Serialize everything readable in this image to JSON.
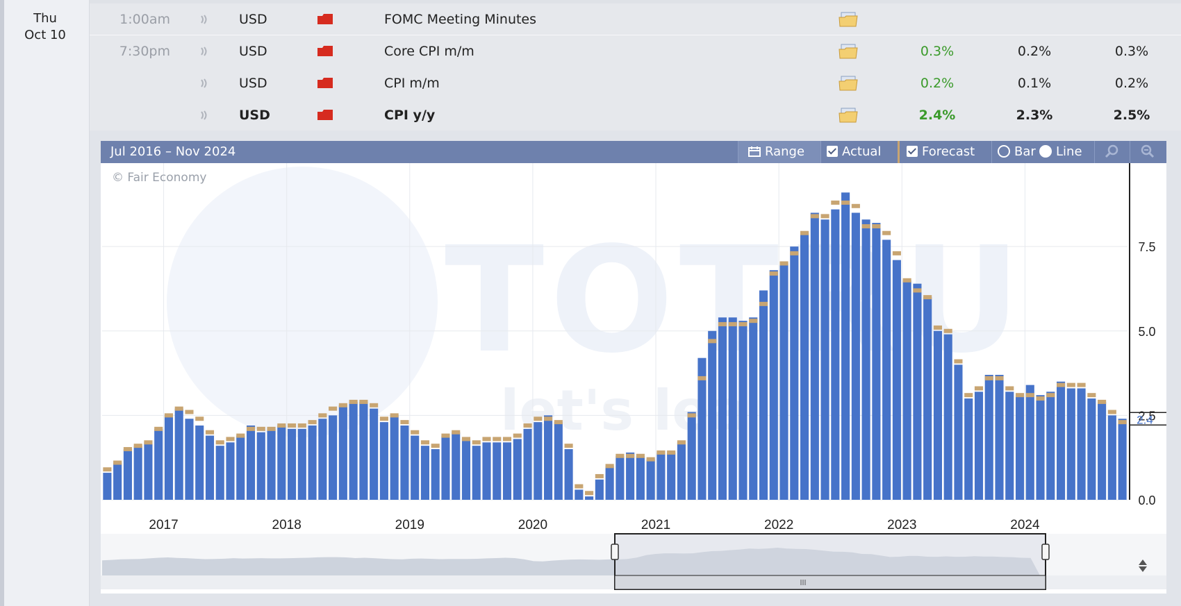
{
  "date": {
    "day": "Thu",
    "date": "Oct 10"
  },
  "events": [
    {
      "time": "1:00am",
      "currency": "USD",
      "title": "FOMC Meeting Minutes",
      "actual": "",
      "forecast": "",
      "previous": "",
      "bold": false
    },
    {
      "time": "7:30pm",
      "currency": "USD",
      "title": "Core CPI m/m",
      "actual": "0.3%",
      "forecast": "0.2%",
      "previous": "0.3%",
      "bold": false
    },
    {
      "time": "",
      "currency": "USD",
      "title": "CPI m/m",
      "actual": "0.2%",
      "forecast": "0.1%",
      "previous": "0.2%",
      "bold": false
    },
    {
      "time": "",
      "currency": "USD",
      "title": "CPI y/y",
      "actual": "2.4%",
      "forecast": "2.3%",
      "previous": "2.5%",
      "bold": true
    }
  ],
  "chart_toolbar": {
    "range_title": "Jul 2016 – Nov 2024",
    "range_label": "Range",
    "actual_label": "Actual",
    "forecast_label": "Forecast",
    "bar_label": "Bar",
    "line_label": "Line"
  },
  "copyright": "© Fair Economy",
  "watermark": "TOTRU",
  "watermark_tagline": "let's lea",
  "colors": {
    "actual_bar": "#4673c9",
    "forecast_cap": "#c8a572",
    "header": "#6e81ad",
    "actual_text": "#3a9a2a"
  },
  "chart_data": {
    "type": "bar",
    "start": "2016-07",
    "y_ticks": [
      "0.0",
      "2.5",
      "5.0",
      "7.5"
    ],
    "ylim": [
      0,
      9.6
    ],
    "x_ticks": [
      "2017",
      "2018",
      "2019",
      "2020",
      "2021",
      "2022",
      "2023",
      "2024"
    ],
    "latest_label": "2.4",
    "series": [
      {
        "name": "Actual",
        "values": [
          0.8,
          1.1,
          1.5,
          1.6,
          1.7,
          2.1,
          2.5,
          2.7,
          2.4,
          2.2,
          1.9,
          1.6,
          1.7,
          1.9,
          2.2,
          2.0,
          2.1,
          2.2,
          2.1,
          2.1,
          2.2,
          2.4,
          2.5,
          2.8,
          2.9,
          2.9,
          2.7,
          2.3,
          2.5,
          2.2,
          1.9,
          1.6,
          1.5,
          1.9,
          2.0,
          1.8,
          1.6,
          1.7,
          1.7,
          1.7,
          1.8,
          2.1,
          2.3,
          2.5,
          2.3,
          1.5,
          0.3,
          0.1,
          0.6,
          1.0,
          1.3,
          1.4,
          1.3,
          1.2,
          1.4,
          1.4,
          1.7,
          2.6,
          4.2,
          5.0,
          5.4,
          5.4,
          5.3,
          5.4,
          6.2,
          6.8,
          7.0,
          7.5,
          7.9,
          8.5,
          8.3,
          8.6,
          9.1,
          8.5,
          8.3,
          8.2,
          7.7,
          7.1,
          6.5,
          6.4,
          6.0,
          5.0,
          4.9,
          4.0,
          3.0,
          3.2,
          3.7,
          3.7,
          3.2,
          3.1,
          3.4,
          3.1,
          3.2,
          3.5,
          3.3,
          3.3,
          3.0,
          2.9,
          2.5,
          2.4
        ]
      },
      {
        "name": "Forecast",
        "values": [
          0.9,
          1.1,
          1.5,
          1.6,
          1.7,
          2.1,
          2.5,
          2.7,
          2.6,
          2.4,
          2.0,
          1.7,
          1.8,
          1.9,
          2.1,
          2.1,
          2.1,
          2.2,
          2.2,
          2.2,
          2.3,
          2.5,
          2.7,
          2.8,
          2.9,
          2.9,
          2.8,
          2.4,
          2.5,
          2.3,
          2.0,
          1.7,
          1.6,
          1.9,
          2.0,
          1.8,
          1.7,
          1.8,
          1.8,
          1.8,
          1.9,
          2.2,
          2.4,
          2.4,
          2.3,
          1.6,
          0.4,
          0.2,
          0.7,
          1.0,
          1.3,
          1.3,
          1.3,
          1.2,
          1.4,
          1.4,
          1.7,
          2.5,
          3.6,
          4.7,
          5.2,
          5.2,
          5.2,
          5.3,
          5.8,
          6.7,
          7.0,
          7.3,
          7.9,
          8.4,
          8.4,
          8.8,
          8.8,
          8.7,
          8.1,
          8.1,
          7.9,
          7.3,
          6.5,
          6.2,
          6.0,
          5.1,
          5.0,
          4.1,
          3.1,
          3.3,
          3.6,
          3.6,
          3.3,
          3.1,
          3.1,
          3.0,
          3.1,
          3.4,
          3.4,
          3.4,
          3.1,
          2.9,
          2.6,
          2.3
        ]
      }
    ]
  }
}
